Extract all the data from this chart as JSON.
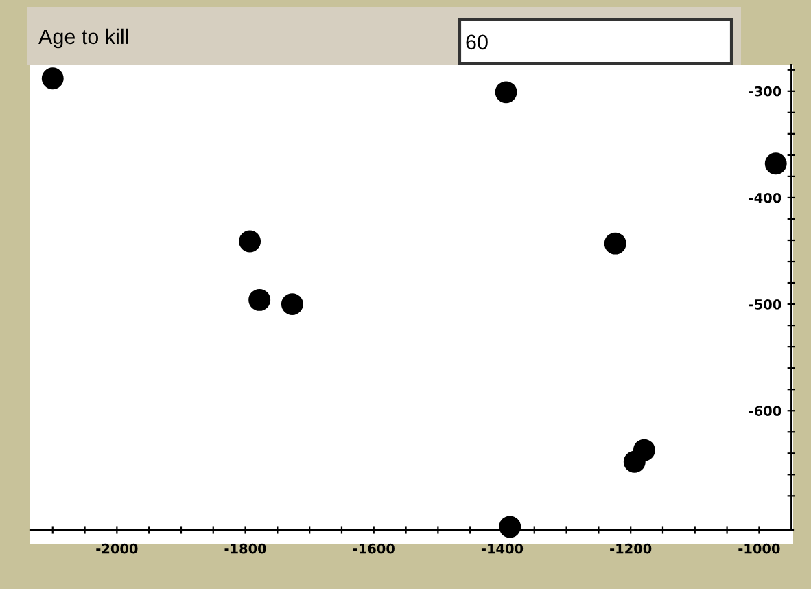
{
  "chart_data": {
    "type": "scatter",
    "annotations": [
      "Age to kill",
      "60"
    ],
    "x": [
      -2100,
      -1394,
      -974,
      -1793,
      -1224,
      -1778,
      -1727,
      -1179,
      -1194,
      -1388
    ],
    "series": [
      {
        "color": "#000000",
        "values": [
          -288,
          -301,
          -368,
          -441,
          -443,
          -496,
          -500,
          -637,
          -648,
          -709
        ]
      }
    ],
    "marker": "circle",
    "xlim": [
      -2135,
      -947
    ],
    "ylim": [
      -712,
      -275
    ],
    "xticks": [
      -2000,
      {
        "value": -1950,
        "label": null
      },
      {
        "value": -1900,
        "label": null
      },
      {
        "value": -1850,
        "label": null
      },
      -1800,
      {
        "value": -1750,
        "label": null
      },
      {
        "value": -1700,
        "label": null
      },
      {
        "value": -1650,
        "label": null
      },
      -1600,
      {
        "value": -1550,
        "label": null
      },
      {
        "value": -1500,
        "label": null
      },
      {
        "value": -1450,
        "label": null
      },
      -1400,
      {
        "value": -1350,
        "label": null
      },
      {
        "value": -1300,
        "label": null
      },
      {
        "value": -1250,
        "label": null
      },
      -1200,
      {
        "value": -1150,
        "label": null
      },
      {
        "value": -1100,
        "label": null
      },
      {
        "value": -1050,
        "label": null
      },
      -1000,
      {
        "value": -2050,
        "label": null
      },
      {
        "value": -2100,
        "label": null
      }
    ],
    "yticks": [
      {
        "value": -280,
        "label": null
      },
      -300,
      {
        "value": -320,
        "label": null
      },
      {
        "value": -340,
        "label": null
      },
      {
        "value": -360,
        "label": null
      },
      {
        "value": -380,
        "label": null
      },
      -400,
      {
        "value": -420,
        "label": null
      },
      {
        "value": -440,
        "label": null
      },
      {
        "value": -460,
        "label": null
      },
      {
        "value": -480,
        "label": null
      },
      -500,
      {
        "value": -520,
        "label": null
      },
      {
        "value": -540,
        "label": null
      },
      {
        "value": -560,
        "label": null
      },
      {
        "value": -580,
        "label": null
      },
      -600,
      {
        "value": -620,
        "label": null
      },
      {
        "value": -640,
        "label": null
      },
      {
        "value": -660,
        "label": null
      },
      {
        "value": -680,
        "label": null
      }
    ],
    "grid": false,
    "legend": false
  }
}
